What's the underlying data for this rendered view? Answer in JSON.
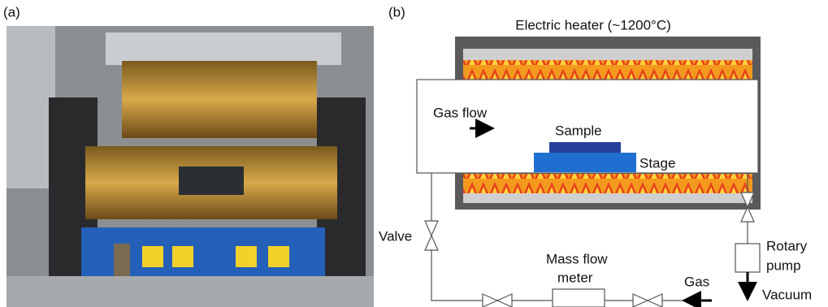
{
  "panel_a": {
    "label": "(a)"
  },
  "panel_b": {
    "label": "(b)",
    "heater": "Electric heater (~1200°C)",
    "gas_flow": "Gas flow",
    "sample": "Sample",
    "stage": "Stage",
    "valve": "Valve",
    "mass_flow_meter": [
      "Mass flow",
      "meter"
    ],
    "gas": "Gas",
    "rotary_pump": [
      "Rotary",
      "pump"
    ],
    "vacuum": "Vacuum"
  }
}
